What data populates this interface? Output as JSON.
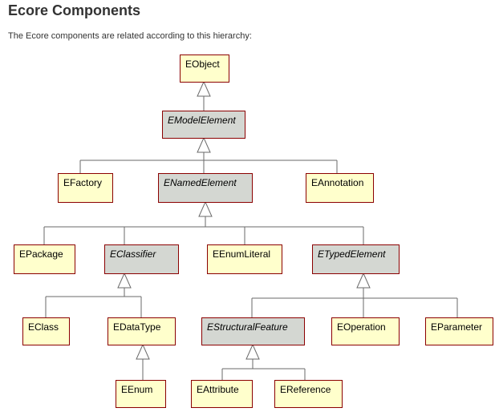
{
  "page": {
    "title": "Ecore Components",
    "intro": "The Ecore components are related according to this hierarchy:"
  },
  "colors": {
    "concrete_fill": "#ffffcc",
    "abstract_fill": "#d4d7d2",
    "box_border": "#8b0000",
    "connector": "#6a6a6a"
  },
  "diagram": {
    "nodes": [
      {
        "id": "eobject",
        "label": "EObject",
        "abstract": false
      },
      {
        "id": "emodelelement",
        "label": "EModelElement",
        "abstract": true
      },
      {
        "id": "efactory",
        "label": "EFactory",
        "abstract": false
      },
      {
        "id": "enamedelement",
        "label": "ENamedElement",
        "abstract": true
      },
      {
        "id": "eannotation",
        "label": "EAnnotation",
        "abstract": false
      },
      {
        "id": "epackage",
        "label": "EPackage",
        "abstract": false
      },
      {
        "id": "eclassifier",
        "label": "EClassifier",
        "abstract": true
      },
      {
        "id": "eenumliteral",
        "label": "EEnumLiteral",
        "abstract": false
      },
      {
        "id": "etypedelement",
        "label": "ETypedElement",
        "abstract": true
      },
      {
        "id": "eclass",
        "label": "EClass",
        "abstract": false
      },
      {
        "id": "edatatype",
        "label": "EDataType",
        "abstract": false
      },
      {
        "id": "estructuralfeature",
        "label": "EStructuralFeature",
        "abstract": true
      },
      {
        "id": "eoperation",
        "label": "EOperation",
        "abstract": false
      },
      {
        "id": "eparameter",
        "label": "EParameter",
        "abstract": false
      },
      {
        "id": "eenum",
        "label": "EEnum",
        "abstract": false
      },
      {
        "id": "eattribute",
        "label": "EAttribute",
        "abstract": false
      },
      {
        "id": "ereference",
        "label": "EReference",
        "abstract": false
      }
    ],
    "edges": [
      {
        "child": "emodelelement",
        "parent": "eobject"
      },
      {
        "child": "efactory",
        "parent": "emodelelement"
      },
      {
        "child": "enamedelement",
        "parent": "emodelelement"
      },
      {
        "child": "eannotation",
        "parent": "emodelelement"
      },
      {
        "child": "epackage",
        "parent": "enamedelement"
      },
      {
        "child": "eclassifier",
        "parent": "enamedelement"
      },
      {
        "child": "eenumliteral",
        "parent": "enamedelement"
      },
      {
        "child": "etypedelement",
        "parent": "enamedelement"
      },
      {
        "child": "eclass",
        "parent": "eclassifier"
      },
      {
        "child": "edatatype",
        "parent": "eclassifier"
      },
      {
        "child": "eenum",
        "parent": "edatatype"
      },
      {
        "child": "estructuralfeature",
        "parent": "etypedelement"
      },
      {
        "child": "eoperation",
        "parent": "etypedelement"
      },
      {
        "child": "eparameter",
        "parent": "etypedelement"
      },
      {
        "child": "eattribute",
        "parent": "estructuralfeature"
      },
      {
        "child": "ereference",
        "parent": "estructuralfeature"
      }
    ]
  }
}
